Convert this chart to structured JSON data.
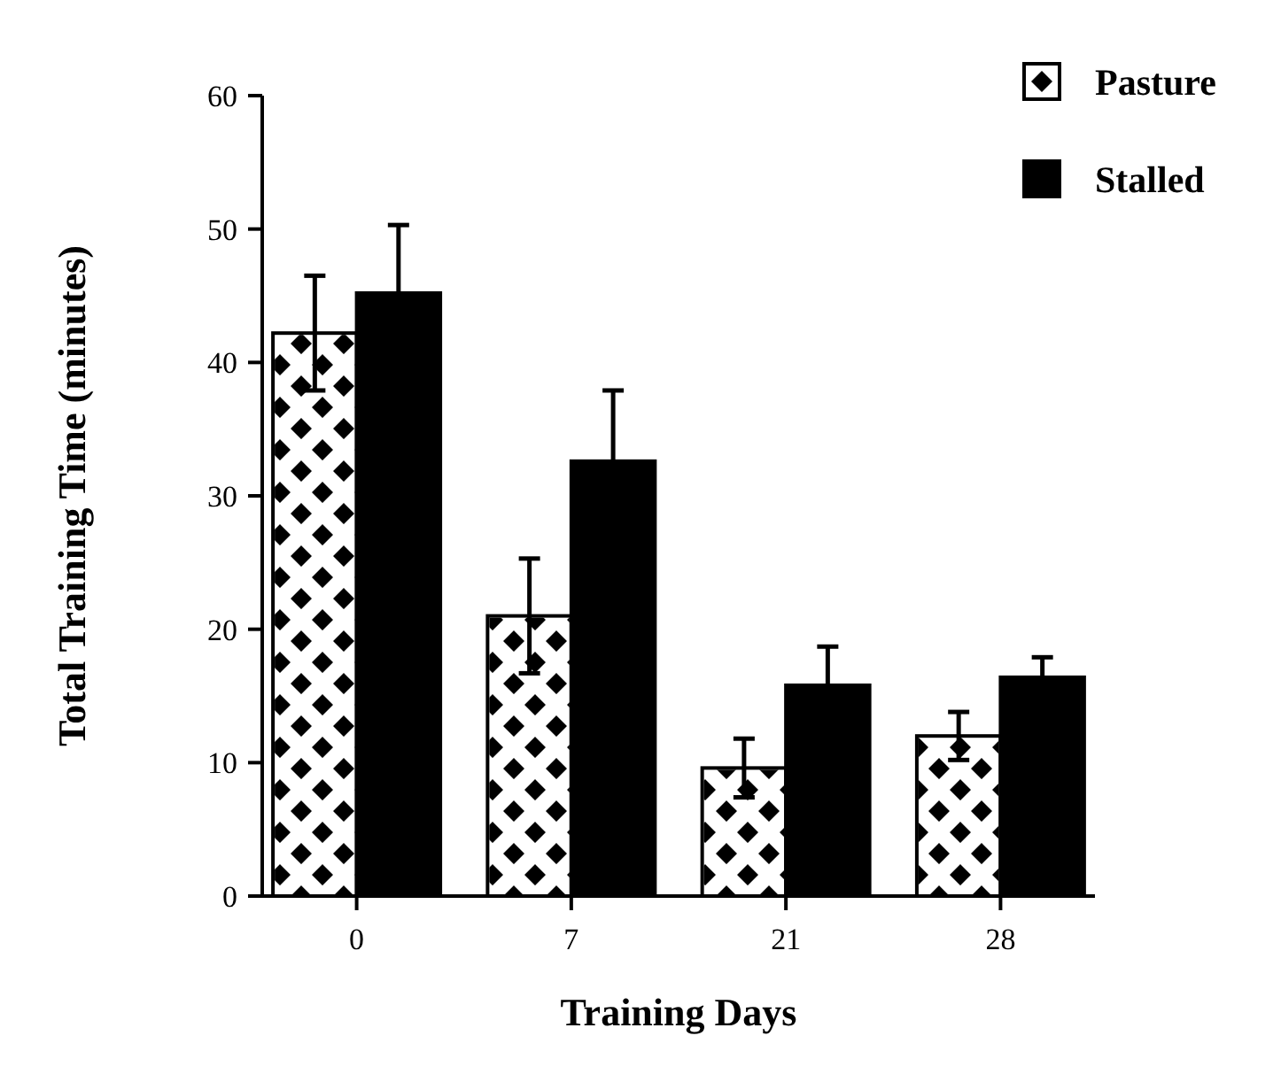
{
  "chart_data": {
    "type": "bar",
    "xlabel": "Training Days",
    "ylabel": "Total Training Time (minutes)",
    "categories": [
      "0",
      "7",
      "21",
      "28"
    ],
    "ylim": [
      0,
      60
    ],
    "yticks": [
      0,
      10,
      20,
      30,
      40,
      50,
      60
    ],
    "grid": false,
    "legend": "top right",
    "series": [
      {
        "name": "Pasture",
        "color": "#ffffff",
        "values": [
          42.2,
          21,
          9.6,
          12
        ],
        "errors": [
          4.3,
          4.3,
          2.2,
          1.8
        ]
      },
      {
        "name": "Stalled",
        "color": "#000000",
        "values": [
          45.2,
          32.6,
          15.8,
          16.4
        ],
        "errors": [
          5.1,
          5.3,
          2.9,
          1.5
        ]
      }
    ]
  }
}
